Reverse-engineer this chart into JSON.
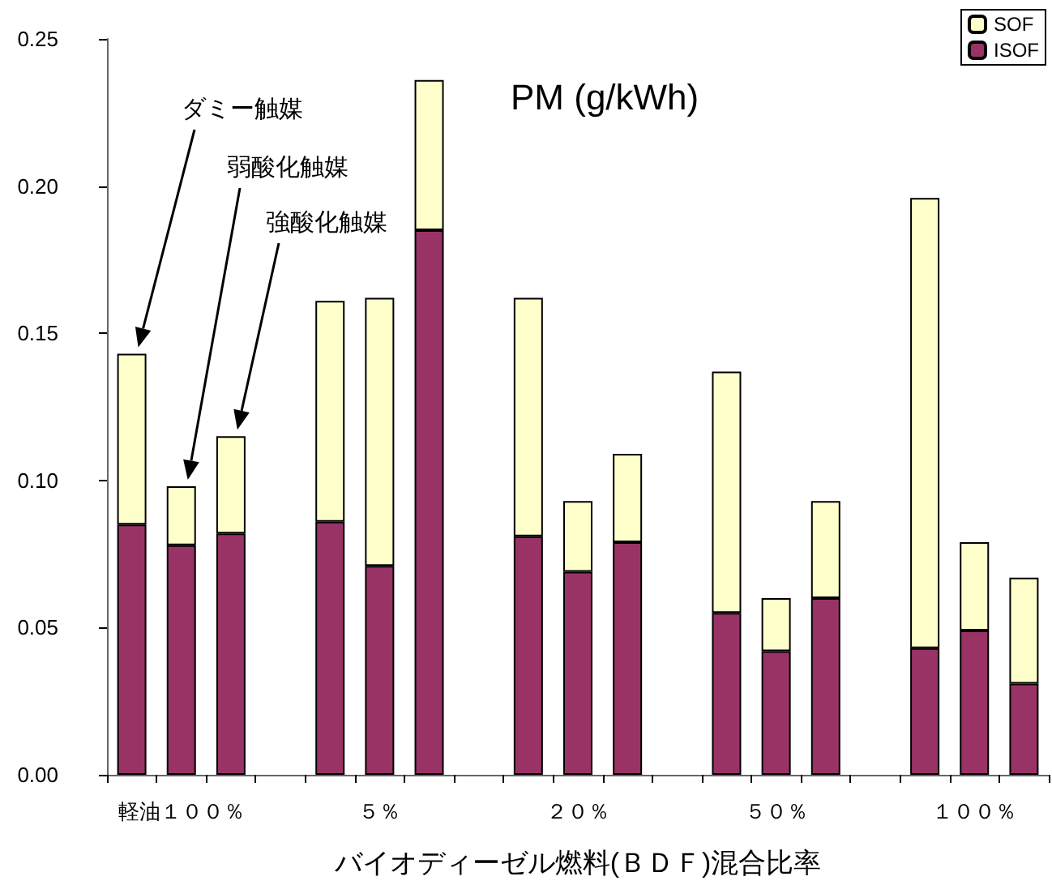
{
  "chart_data": {
    "type": "bar",
    "stacked": true,
    "title": "PM (g/kWh)",
    "xlabel": "バイオディーゼル燃料(ＢＤＦ)混合比率",
    "categories": [
      null,
      "軽油１００％",
      null,
      null,
      null,
      "５％",
      null,
      null,
      null,
      "２０％",
      null,
      null,
      null,
      "５０％",
      null,
      null,
      null,
      "１００％",
      null
    ],
    "series": [
      {
        "name": "ISOF",
        "color": "#993366",
        "values": [
          0.085,
          0.078,
          0.082,
          null,
          0.086,
          0.071,
          0.185,
          null,
          0.081,
          0.069,
          0.079,
          null,
          0.055,
          0.042,
          0.06,
          null,
          0.043,
          0.049,
          0.031
        ]
      },
      {
        "name": "SOF",
        "color": "#ffffcc",
        "values": [
          0.058,
          0.02,
          0.033,
          null,
          0.075,
          0.091,
          0.051,
          null,
          0.081,
          0.024,
          0.03,
          null,
          0.082,
          0.018,
          0.033,
          null,
          0.153,
          0.03,
          0.036
        ]
      }
    ],
    "ylim": [
      0,
      0.25
    ],
    "yticks": [
      {
        "value": 0,
        "label": "0.00"
      },
      {
        "value": 0.05,
        "label": "0.05"
      },
      {
        "value": 0.1,
        "label": "0.10"
      },
      {
        "value": 0.15,
        "label": "0.15"
      },
      {
        "value": 0.2,
        "label": "0.20"
      },
      {
        "value": 0.25,
        "label": "0.25"
      }
    ],
    "annotations": [
      "ダミー触媒",
      "弱酸化触媒",
      "強酸化触媒"
    ],
    "grid": false,
    "legend": "top right"
  }
}
